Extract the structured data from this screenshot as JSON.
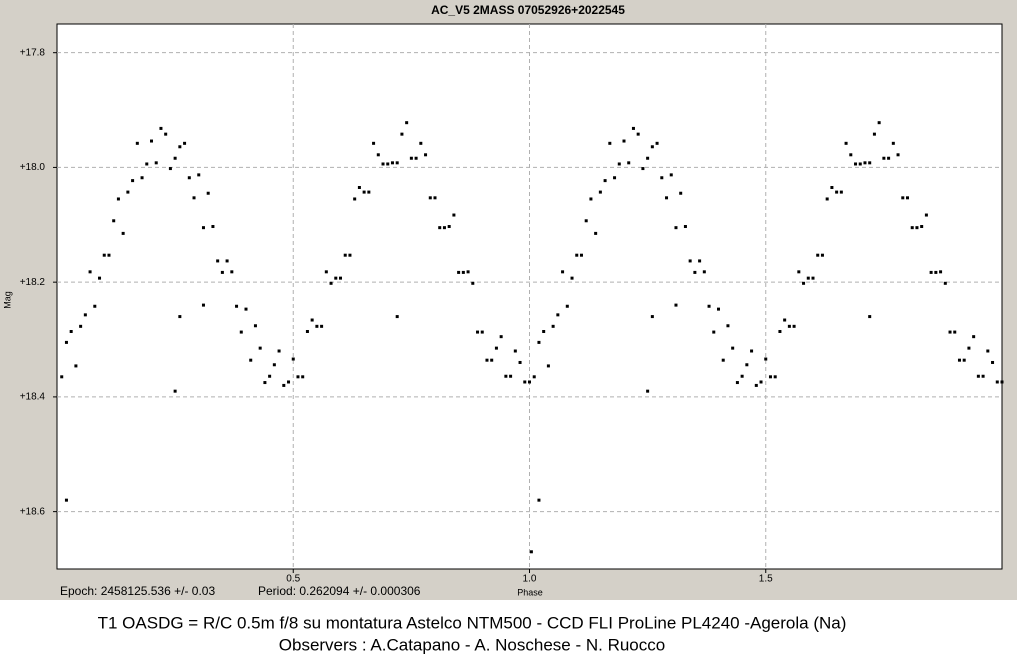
{
  "chart_data": {
    "type": "scatter",
    "title": "AC_V5  2MASS 07052926+2022545",
    "x_label": "Phase",
    "y_label": "Mag",
    "epoch": "Epoch: 2458125.536 +/- 0.03",
    "period": "Period: 0.262094 +/- 0.000306",
    "footer_lines": [
      "T1 OASDG =  R/C 0.5m f/8 su montatura Astelco NTM500 - CCD FLI ProLine PL4240 -Agerola (Na)",
      "Observers : A.Catapano -  A. Noschese - N. Ruocco"
    ],
    "xlim": [
      0,
      2
    ],
    "ylim": [
      17.75,
      18.7
    ],
    "y_inverted": true,
    "grid": true,
    "color": "#000000",
    "xticks": [
      0.5,
      {
        "value": 1,
        "label": "1.0"
      },
      1.5
    ],
    "yticks": [
      {
        "value": 17.8,
        "label": "+17.8"
      },
      {
        "value": 18.0,
        "label": "+18.0"
      },
      {
        "value": 18.2,
        "label": "+18.2"
      },
      {
        "value": 18.4,
        "label": "+18.4"
      },
      {
        "value": 18.6,
        "label": "+18.6"
      }
    ],
    "x": [
      0.01,
      0.03,
      0.05,
      0.07,
      0.09,
      0.11,
      0.13,
      0.15,
      0.17,
      0.19,
      0.21,
      0.23,
      0.25,
      0.27,
      0.29,
      0.31,
      0.33,
      0.35,
      0.37,
      0.39,
      0.41,
      0.43,
      0.45,
      0.47,
      0.49,
      0.51,
      0.53,
      0.55,
      0.57,
      0.59,
      0.61,
      0.63,
      0.65,
      0.67,
      0.69,
      0.71,
      0.73,
      0.75,
      0.77,
      0.79,
      0.81,
      0.83,
      0.85,
      0.87,
      0.89,
      0.91,
      0.93,
      0.95,
      0.97,
      0.99,
      0.02,
      0.04,
      0.06,
      0.08,
      0.1,
      0.12,
      0.14,
      0.16,
      0.18,
      0.2,
      0.22,
      0.24,
      0.26,
      0.28,
      0.3,
      0.32,
      0.34,
      0.36,
      0.38,
      0.4,
      0.42,
      0.44,
      0.46,
      0.48,
      0.5,
      0.52,
      0.54,
      0.56,
      0.58,
      0.6,
      0.62,
      0.64,
      0.66,
      0.68,
      0.7,
      0.72,
      0.74,
      0.76,
      0.78,
      0.8,
      0.82,
      0.84,
      0.86,
      0.88,
      0.9,
      0.92,
      0.94,
      0.96,
      0.98,
      1,
      1.01,
      1.03,
      1.05,
      1.07,
      1.09,
      1.11,
      1.13,
      1.15,
      1.17,
      1.19,
      1.21,
      1.23,
      1.25,
      1.27,
      1.29,
      1.31,
      1.33,
      1.35,
      1.37,
      1.39,
      1.41,
      1.43,
      1.45,
      1.47,
      1.49,
      1.51,
      1.53,
      1.55,
      1.57,
      1.59,
      1.61,
      1.63,
      1.65,
      1.67,
      1.69,
      1.71,
      1.73,
      1.75,
      1.77,
      1.79,
      1.81,
      1.83,
      1.85,
      1.87,
      1.89,
      1.91,
      1.93,
      1.95,
      1.97,
      1.99,
      1.02,
      1.04,
      1.06,
      1.08,
      1.1,
      1.12,
      1.14,
      1.16,
      1.18,
      1.2,
      1.22,
      1.24,
      1.26,
      1.28,
      1.3,
      1.32,
      1.34,
      1.36,
      1.38,
      1.4,
      1.42,
      1.44,
      1.46,
      1.48,
      1.5,
      1.52,
      1.54,
      1.56,
      1.58,
      1.6,
      1.62,
      1.64,
      1.66,
      1.68,
      1.7,
      1.72,
      1.74,
      1.76,
      1.78,
      1.8,
      1.82,
      1.84,
      1.86,
      1.88,
      1.9,
      1.92,
      1.94,
      1.96,
      1.98,
      2,
      0.02,
      0.25,
      0.26,
      0.31,
      0.72,
      1.004,
      1.02,
      1.25,
      1.26,
      1.31,
      1.72
    ],
    "values": [
      18.365,
      18.286,
      18.277,
      18.182,
      18.193,
      18.153,
      18.055,
      18.043,
      17.958,
      17.994,
      17.992,
      17.942,
      17.984,
      17.958,
      18.053,
      18.105,
      18.103,
      18.183,
      18.182,
      18.287,
      18.336,
      18.315,
      18.364,
      18.32,
      18.374,
      18.365,
      18.286,
      18.277,
      18.182,
      18.193,
      18.153,
      18.055,
      18.043,
      17.958,
      17.994,
      17.992,
      17.942,
      17.984,
      17.958,
      18.053,
      18.105,
      18.103,
      18.183,
      18.182,
      18.287,
      18.336,
      18.315,
      18.364,
      18.32,
      18.374,
      18.305,
      18.346,
      18.257,
      18.242,
      18.153,
      18.093,
      18.115,
      18.023,
      18.018,
      17.954,
      17.932,
      18.002,
      17.964,
      18.018,
      18.013,
      18.045,
      18.163,
      18.163,
      18.242,
      18.247,
      18.276,
      18.375,
      18.344,
      18.38,
      18.334,
      18.365,
      18.266,
      18.277,
      18.202,
      18.193,
      18.153,
      18.035,
      18.043,
      17.978,
      17.994,
      17.992,
      17.922,
      17.984,
      17.978,
      18.053,
      18.105,
      18.083,
      18.183,
      18.202,
      18.287,
      18.336,
      18.295,
      18.364,
      18.34,
      18.374,
      18.365,
      18.286,
      18.277,
      18.182,
      18.193,
      18.153,
      18.055,
      18.043,
      17.958,
      17.994,
      17.992,
      17.942,
      17.984,
      17.958,
      18.053,
      18.105,
      18.103,
      18.183,
      18.182,
      18.287,
      18.336,
      18.315,
      18.364,
      18.32,
      18.374,
      18.365,
      18.286,
      18.277,
      18.182,
      18.193,
      18.153,
      18.055,
      18.043,
      17.958,
      17.994,
      17.992,
      17.942,
      17.984,
      17.958,
      18.053,
      18.105,
      18.103,
      18.183,
      18.182,
      18.287,
      18.336,
      18.315,
      18.364,
      18.32,
      18.374,
      18.305,
      18.346,
      18.257,
      18.242,
      18.153,
      18.093,
      18.115,
      18.023,
      18.018,
      17.954,
      17.932,
      18.002,
      17.964,
      18.018,
      18.013,
      18.045,
      18.163,
      18.163,
      18.242,
      18.247,
      18.276,
      18.375,
      18.344,
      18.38,
      18.334,
      18.365,
      18.266,
      18.277,
      18.202,
      18.193,
      18.153,
      18.035,
      18.043,
      17.978,
      17.994,
      17.992,
      17.922,
      17.984,
      17.978,
      18.053,
      18.105,
      18.083,
      18.183,
      18.202,
      18.287,
      18.336,
      18.295,
      18.364,
      18.34,
      18.374,
      18.58,
      18.39,
      18.26,
      18.24,
      18.26,
      18.67,
      18.58,
      18.39,
      18.26,
      18.24,
      18.26
    ]
  }
}
